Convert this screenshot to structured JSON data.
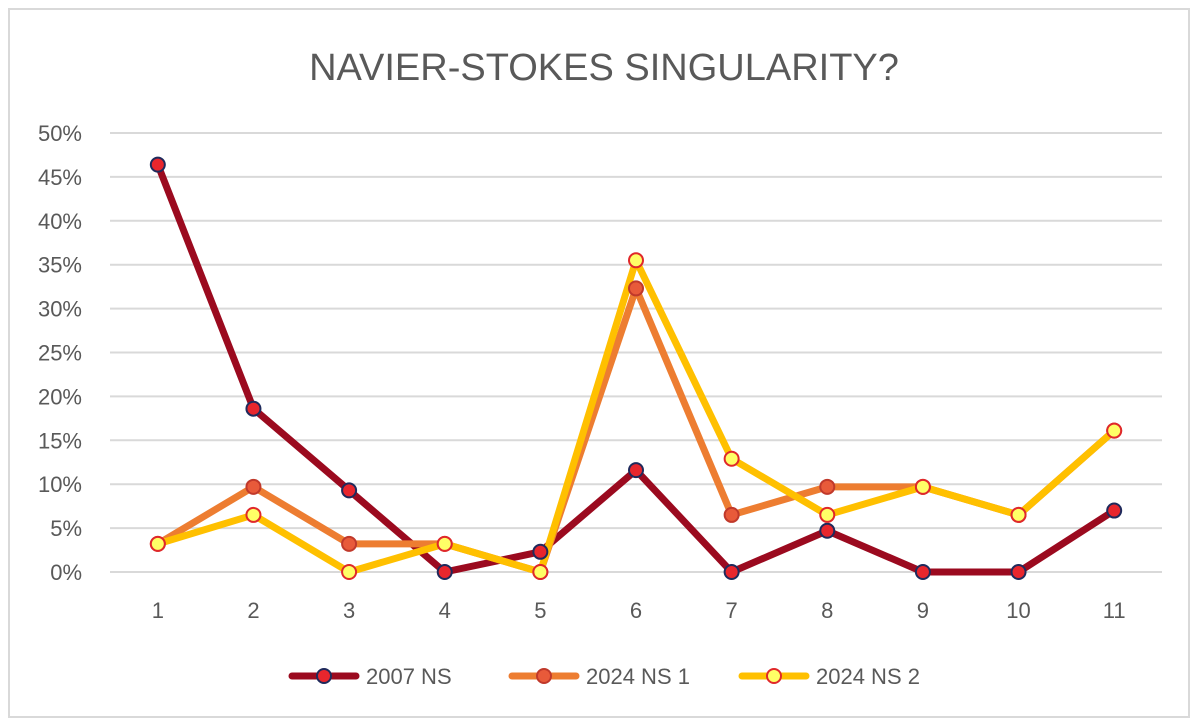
{
  "chart_data": {
    "type": "line",
    "title": "NAVIER-STOKES SINGULARITY?",
    "x": [
      "1",
      "2",
      "3",
      "4",
      "5",
      "6",
      "7",
      "8",
      "9",
      "10",
      "11"
    ],
    "y_ticks": [
      "0%",
      "5%",
      "10%",
      "15%",
      "20%",
      "25%",
      "30%",
      "35%",
      "40%",
      "45%",
      "50%"
    ],
    "ylim": [
      0,
      0.5
    ],
    "grid": true,
    "legend_position": "bottom",
    "series": [
      {
        "name": "2007 NS",
        "color": "#9b0a1f",
        "marker_fill": "#e8262d",
        "marker_edge": "#1f2a5c",
        "values": [
          0.464,
          0.186,
          0.093,
          0.0,
          0.023,
          0.116,
          0.0,
          0.047,
          0.0,
          0.0,
          0.07
        ]
      },
      {
        "name": "2024 NS 1",
        "color": "#ed7d31",
        "marker_fill": "#e85a3a",
        "marker_edge": "#c0392b",
        "values": [
          0.032,
          0.097,
          0.032,
          0.032,
          0.0,
          0.323,
          0.065,
          0.097,
          0.097,
          0.065,
          0.161
        ]
      },
      {
        "name": "2024 NS 2",
        "color": "#ffc000",
        "marker_fill": "#ffff66",
        "marker_edge": "#e0282a",
        "values": [
          0.032,
          0.065,
          0.0,
          0.032,
          0.0,
          0.355,
          0.129,
          0.065,
          0.097,
          0.065,
          0.161
        ]
      }
    ]
  }
}
